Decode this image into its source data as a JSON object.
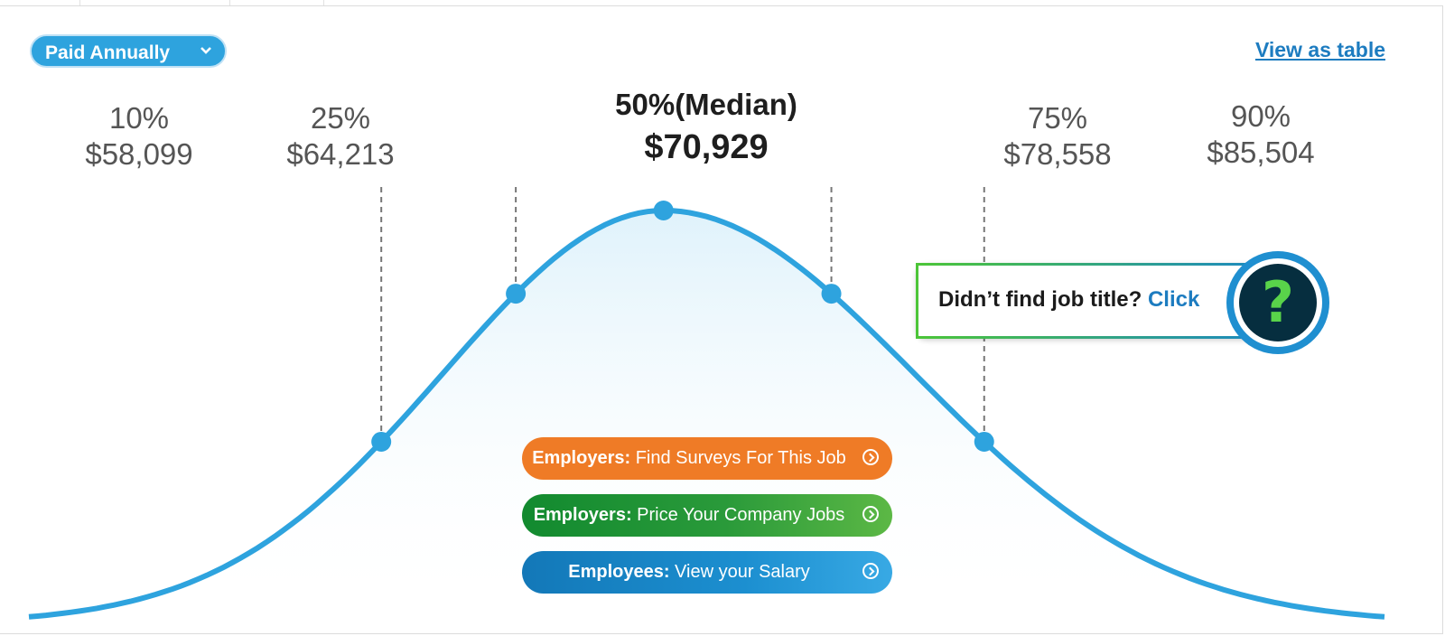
{
  "period_select": {
    "label": "Paid Annually"
  },
  "view_table_link": "View as table",
  "chart_data": {
    "type": "line",
    "title": "",
    "x": [
      "10%",
      "25%",
      "50%(Median)",
      "75%",
      "90%"
    ],
    "series": [
      {
        "values": [
          58099,
          64213,
          70929,
          78558,
          85504
        ]
      }
    ],
    "percentiles": [
      {
        "label": "10%",
        "value": "$58,099"
      },
      {
        "label": "25%",
        "value": "$64,213"
      },
      {
        "label": "50%(Median)",
        "value": "$70,929"
      },
      {
        "label": "75%",
        "value": "$78,558"
      },
      {
        "label": "90%",
        "value": "$85,504"
      }
    ],
    "colors": {
      "curve": "#2ea3de",
      "fill_top": "#dff2fb",
      "guide": "#777777"
    }
  },
  "ctas": [
    {
      "bold": "Employers:",
      "text": " Find Surveys For This Job",
      "color": "#ef7b26"
    },
    {
      "bold": "Employers:",
      "text": " Price Your Company Jobs",
      "color": "#2a9a3a"
    },
    {
      "bold": "Employees:",
      "text": " View your Salary",
      "color": "#1c8fd0"
    }
  ],
  "help": {
    "text": "Didn’t find job title?",
    "link": "Click",
    "icon": "question-icon",
    "glyph": "?"
  }
}
